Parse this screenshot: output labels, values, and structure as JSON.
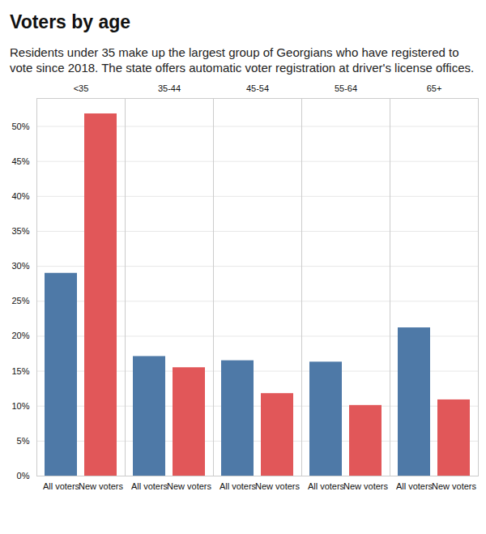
{
  "chart_data": {
    "type": "bar",
    "title": "Voters by age",
    "subtitle": "Residents under 35 make up the largest group of Georgians who have registered to vote since 2018. The state offers automatic voter registration at driver's license offices.",
    "categories": [
      "<35",
      "35-44",
      "45-54",
      "55-64",
      "65+"
    ],
    "series": [
      {
        "name": "All voters",
        "color": "#4e79a7",
        "values": [
          29.0,
          17.1,
          16.5,
          16.3,
          21.2
        ]
      },
      {
        "name": "New voters",
        "color": "#e15759",
        "values": [
          51.8,
          15.5,
          11.8,
          10.1,
          10.9
        ]
      }
    ],
    "ylim": [
      0,
      54
    ],
    "yticks": [
      {
        "value": 0,
        "label": "0%"
      },
      {
        "value": 5,
        "label": "5%"
      },
      {
        "value": 10,
        "label": "10%"
      },
      {
        "value": 15,
        "label": "15%"
      },
      {
        "value": 20,
        "label": "20%"
      },
      {
        "value": 25,
        "label": "25%"
      },
      {
        "value": 30,
        "label": "30%"
      },
      {
        "value": 35,
        "label": "35%"
      },
      {
        "value": 40,
        "label": "40%"
      },
      {
        "value": 45,
        "label": "45%"
      },
      {
        "value": 50,
        "label": "50%"
      }
    ],
    "grid": true
  }
}
